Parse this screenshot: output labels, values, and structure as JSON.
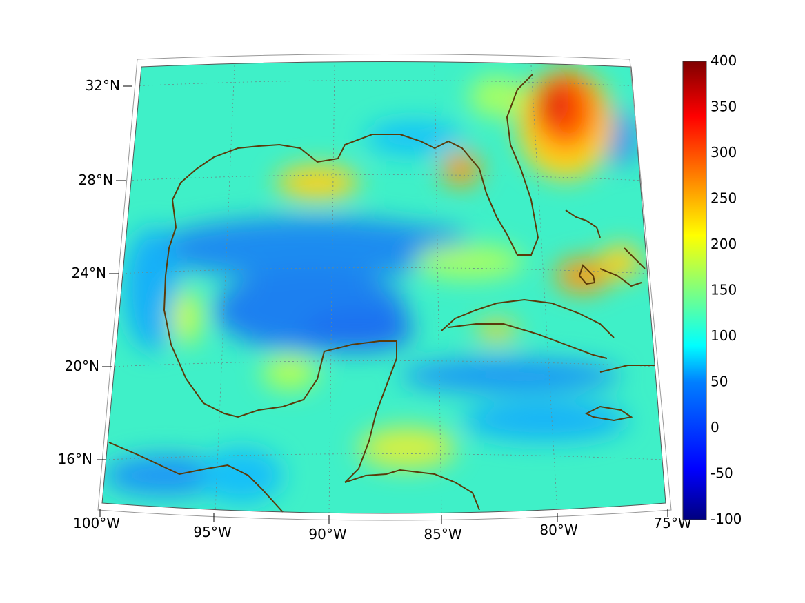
{
  "map": {
    "lon_labels": [
      "100°W",
      "95°W",
      "90°W",
      "85°W",
      "80°W",
      "75°W"
    ],
    "lat_labels": [
      "32°N",
      "28°N",
      "24°N",
      "20°N",
      "16°N"
    ],
    "extent": {
      "lon_min": -100,
      "lon_max": -75,
      "lat_min": 14,
      "lat_max": 33
    },
    "coastline_color": "#5a3a0a",
    "grid_style": "dotted",
    "projection": "conic"
  },
  "colorbar": {
    "ticks": [
      "400",
      "350",
      "300",
      "250",
      "200",
      "150",
      "100",
      "50",
      "0",
      "-50",
      "-100"
    ],
    "min": -100,
    "max": 400,
    "colormap": "jet",
    "stops": [
      "#00007f",
      "#0000ff",
      "#007fff",
      "#00ffff",
      "#7fff7f",
      "#ffff00",
      "#ff7f00",
      "#ff0000",
      "#7f0000"
    ]
  }
}
